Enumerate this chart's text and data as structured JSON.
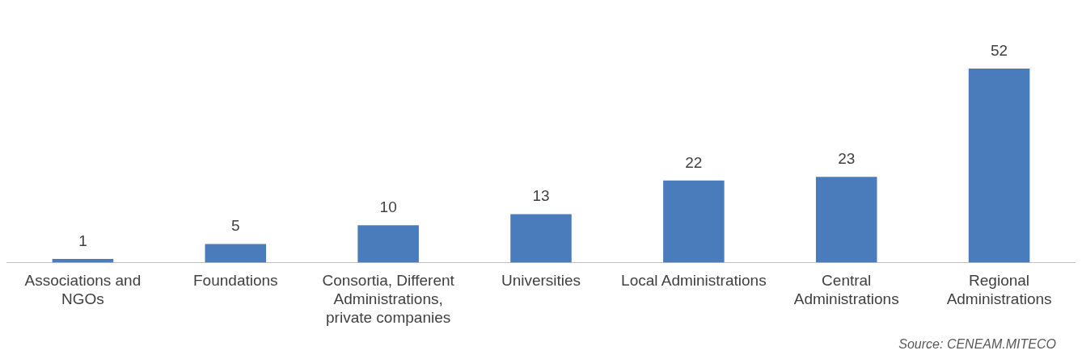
{
  "chart_data": {
    "type": "bar",
    "categories": [
      "Associations and NGOs",
      "Foundations",
      "Consortia, Different Administrations, private companies",
      "Universities",
      "Local Administrations",
      "Central Administrations",
      "Regional Administrations"
    ],
    "values": [
      1,
      5,
      10,
      13,
      22,
      23,
      52
    ],
    "color": "#4a7bbb",
    "data_labels": true,
    "grid": false,
    "legend": false,
    "annotations": [
      "Source: CENEAM.MITECO"
    ]
  }
}
